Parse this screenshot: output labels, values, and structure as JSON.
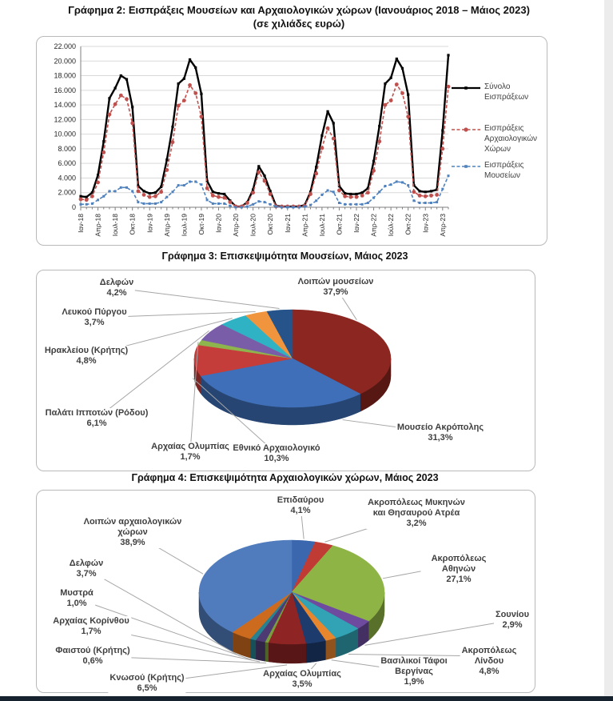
{
  "page": {
    "bottom_bar_color": "#16222e",
    "right_strip_color": "#ececec"
  },
  "chart_data": [
    {
      "type": "line",
      "title_line1": "Γράφημα 2: Εισπράξεις Μουσείων και Αρχαιολογικών χώρων (Ιανουάριος 2018 – Μάιος 2023)",
      "title_line2": "(σε χιλιάδες ευρώ)",
      "ylabel": "",
      "xlabel": "",
      "ylim": [
        0,
        22000
      ],
      "grid": true,
      "legend_position": "right",
      "y_tick_labels": [
        "0",
        "2.000",
        "4.000",
        "6.000",
        "8.000",
        "10.000",
        "12.000",
        "14.000",
        "16.000",
        "18.000",
        "20.000",
        "22.000"
      ],
      "n_months": 65,
      "x_ticks": [
        {
          "i": 0,
          "label": "Ιαν-18"
        },
        {
          "i": 3,
          "label": "Απρ-18"
        },
        {
          "i": 6,
          "label": "Ιουλ-18"
        },
        {
          "i": 9,
          "label": "Οκτ-18"
        },
        {
          "i": 12,
          "label": "Ιαν-19"
        },
        {
          "i": 15,
          "label": "Απρ-19"
        },
        {
          "i": 18,
          "label": "Ιουλ-19"
        },
        {
          "i": 21,
          "label": "Οκτ-19"
        },
        {
          "i": 24,
          "label": "Ιαν-20"
        },
        {
          "i": 27,
          "label": "Απρ-20"
        },
        {
          "i": 30,
          "label": "Ιουλ-20"
        },
        {
          "i": 33,
          "label": "Οκτ-20"
        },
        {
          "i": 36,
          "label": "Ιαν-21"
        },
        {
          "i": 39,
          "label": "Απρ-21"
        },
        {
          "i": 42,
          "label": "Ιουλ-21"
        },
        {
          "i": 45,
          "label": "Οκτ-21"
        },
        {
          "i": 48,
          "label": "Ιαν-22"
        },
        {
          "i": 51,
          "label": "Απρ-22"
        },
        {
          "i": 54,
          "label": "Ιούλ-22"
        },
        {
          "i": 57,
          "label": "Οκτ-22"
        },
        {
          "i": 60,
          "label": "Ιαν-23"
        },
        {
          "i": 63,
          "label": "Απρ-23"
        }
      ],
      "series": [
        {
          "name": "Σύνολο Εισπράξεων",
          "color": "#000000",
          "style": "solid",
          "marker": "square",
          "values": [
            1500,
            1400,
            2000,
            4400,
            9000,
            14900,
            16300,
            18000,
            17500,
            13700,
            2900,
            2200,
            1900,
            2000,
            2800,
            6500,
            11000,
            16900,
            17600,
            20200,
            19100,
            15500,
            3600,
            2100,
            1900,
            1800,
            900,
            100,
            100,
            700,
            2400,
            5600,
            4300,
            2200,
            200,
            100,
            100,
            100,
            100,
            300,
            2100,
            5500,
            9800,
            13100,
            11500,
            2900,
            1900,
            1800,
            1800,
            2000,
            2600,
            6300,
            11100,
            16900,
            17700,
            20300,
            19000,
            15400,
            3000,
            2200,
            2100,
            2200,
            2400,
            10500,
            20800
          ]
        },
        {
          "name": "Εισπράξεις Αρχαιολογικών Χώρων",
          "color": "#C0504D",
          "style": "dashed",
          "marker": "circle",
          "values": [
            1100,
            1000,
            1500,
            3400,
            7500,
            12700,
            14100,
            15300,
            14800,
            11500,
            2200,
            1700,
            1400,
            1500,
            2100,
            5100,
            8900,
            13900,
            14600,
            16700,
            15600,
            12400,
            2600,
            1600,
            1400,
            1300,
            700,
            100,
            100,
            600,
            2000,
            4800,
            3600,
            1800,
            100,
            100,
            100,
            100,
            100,
            200,
            1800,
            4600,
            8100,
            10800,
            9400,
            2300,
            1500,
            1400,
            1400,
            1600,
            2000,
            5000,
            9000,
            14000,
            14600,
            16800,
            15600,
            12400,
            2100,
            1600,
            1500,
            1600,
            1700,
            8000,
            16500
          ]
        },
        {
          "name": "Εισπράξεις Μουσείων",
          "color": "#4F81BD",
          "style": "dashed",
          "marker": "square",
          "values": [
            400,
            400,
            500,
            1000,
            1500,
            2200,
            2200,
            2700,
            2700,
            2200,
            700,
            500,
            500,
            500,
            700,
            1400,
            2100,
            3000,
            3000,
            3500,
            3500,
            3100,
            1000,
            500,
            500,
            500,
            200,
            0,
            0,
            100,
            400,
            800,
            700,
            400,
            100,
            0,
            0,
            0,
            0,
            100,
            300,
            900,
            1700,
            2300,
            2100,
            600,
            400,
            400,
            400,
            400,
            600,
            1300,
            2100,
            2900,
            3100,
            3500,
            3400,
            3000,
            900,
            600,
            600,
            600,
            700,
            2500,
            4300
          ]
        }
      ]
    },
    {
      "type": "pie",
      "title": "Γράφημα 3: Επισκεψιμότητα Μουσείων, Μάιος 2023",
      "slices": [
        {
          "label": "Λοιπών μουσείων",
          "value": 37.9,
          "pct": "37,9%",
          "color": "#8C2620"
        },
        {
          "label": "Μουσείο Ακρόπολης",
          "value": 31.3,
          "pct": "31,3%",
          "color": "#3E6FB8"
        },
        {
          "label": "Εθνικό Αρχαιολογικό",
          "value": 10.3,
          "pct": "10,3%",
          "color": "#C43D3A"
        },
        {
          "label": "Αρχαίας Ολυμπίας",
          "value": 1.7,
          "pct": "1,7%",
          "color": "#8EB54D"
        },
        {
          "label": "Παλάτι Ιπποτών (Ρόδου)",
          "value": 6.1,
          "pct": "6,1%",
          "color": "#7A5DA8"
        },
        {
          "label": "Ηρακλείου (Κρήτης)",
          "value": 4.8,
          "pct": "4,8%",
          "color": "#2EB2C4"
        },
        {
          "label": "Λευκού Πύργου",
          "value": 3.7,
          "pct": "3,7%",
          "color": "#F0953E"
        },
        {
          "label": "Δελφών",
          "value": 4.2,
          "pct": "4,2%",
          "color": "#25538A"
        }
      ]
    },
    {
      "type": "pie",
      "title": "Γράφημα 4: Επισκεψιμότητα Αρχαιολογικών χώρων, Μάιος 2023",
      "slices": [
        {
          "label": "Επιδαύρου",
          "value": 4.1,
          "pct": "4,1%",
          "color": "#3A67AD"
        },
        {
          "label": "Ακροπόλεως Μυκηνών\nκαι Θησαυρού Ατρέα",
          "value": 3.2,
          "pct": "3,2%",
          "color": "#C13B35"
        },
        {
          "label": "Ακροπόλεως Αθηνών",
          "value": 27.1,
          "pct": "27,1%",
          "color": "#8FB446"
        },
        {
          "label": "Σουνίου",
          "value": 2.9,
          "pct": "2,9%",
          "color": "#6E4B9E"
        },
        {
          "label": "Ακροπόλεως Λίνδου",
          "value": 4.8,
          "pct": "4,8%",
          "color": "#31A3B4"
        },
        {
          "label": "Βασιλικοί Τάφοι\nΒεργίνας",
          "value": 1.9,
          "pct": "1,9%",
          "color": "#E8862E"
        },
        {
          "label": "Αρχαίας Ολυμπίας",
          "value": 3.5,
          "pct": "3,5%",
          "color": "#1E3B6E"
        },
        {
          "label": "Κνωσού (Κρήτης)",
          "value": 6.5,
          "pct": "6,5%",
          "color": "#8E2424"
        },
        {
          "label": "Φαιστού (Κρήτης)",
          "value": 0.6,
          "pct": "0,6%",
          "color": "#7A9E3E"
        },
        {
          "label": "Αρχαίας Κορίνθου",
          "value": 1.7,
          "pct": "1,7%",
          "color": "#4E3A73"
        },
        {
          "label": "Μυστρά",
          "value": 1.0,
          "pct": "1,0%",
          "color": "#27818E"
        },
        {
          "label": "Δελφών",
          "value": 3.7,
          "pct": "3,7%",
          "color": "#CC6B1E"
        },
        {
          "label": "Λοιπών αρχαιολογικών\nχώρων",
          "value": 38.9,
          "pct": "38,9%",
          "color": "#507CBE"
        }
      ]
    }
  ]
}
